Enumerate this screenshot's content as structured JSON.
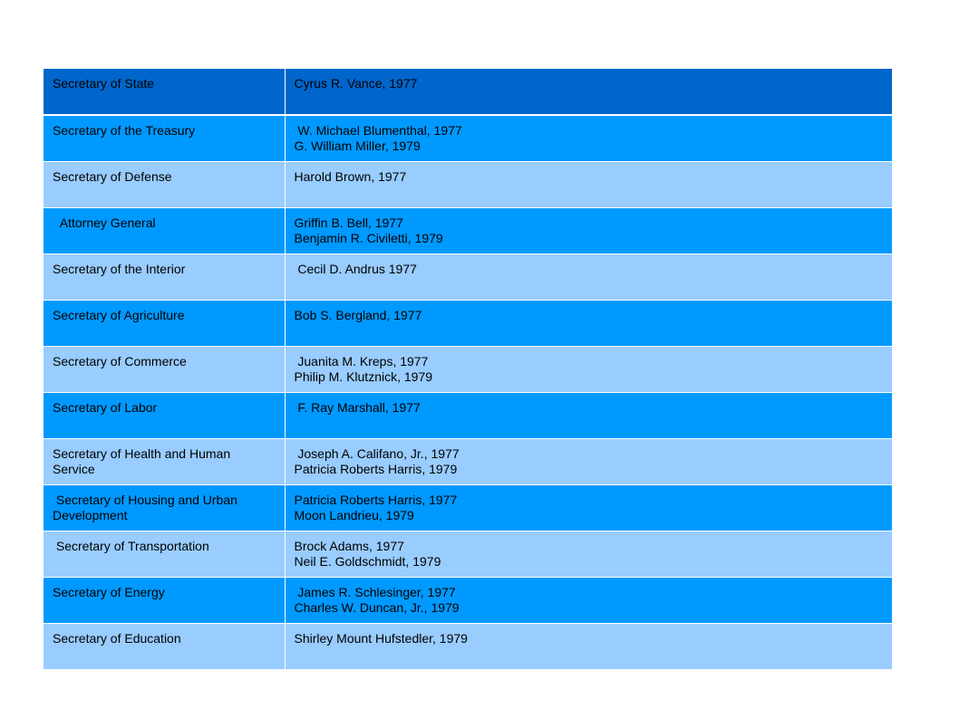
{
  "rows": [
    {
      "office": "Secretary of State",
      "holders": [
        "Cyrus R. Vance, 1977"
      ]
    },
    {
      "office": "Secretary of the Treasury",
      "holders": [
        " W. Michael Blumenthal, 1977",
        "G. William Miller, 1979"
      ]
    },
    {
      "office": "Secretary of Defense",
      "holders": [
        "Harold Brown, 1977"
      ]
    },
    {
      "office": "  Attorney General",
      "holders": [
        "Griffin B. Bell, 1977",
        "Benjamin R. Civiletti, 1979"
      ]
    },
    {
      "office": "Secretary of the Interior",
      "holders": [
        " Cecil D. Andrus 1977"
      ]
    },
    {
      "office": "Secretary of Agriculture",
      "holders": [
        "Bob S. Bergland, 1977"
      ]
    },
    {
      "office": "Secretary of Commerce",
      "holders": [
        " Juanita M. Kreps, 1977",
        "Philip M. Klutznick, 1979"
      ]
    },
    {
      "office": "Secretary of Labor",
      "holders": [
        " F. Ray Marshall, 1977"
      ]
    },
    {
      "office": "Secretary of Health and Human Service",
      "holders": [
        " Joseph A. Califano, Jr., 1977",
        "Patricia Roberts Harris, 1979"
      ]
    },
    {
      "office": " Secretary of Housing and Urban Development",
      "holders": [
        "Patricia Roberts Harris, 1977",
        "Moon Landrieu, 1979"
      ]
    },
    {
      "office": " Secretary of Transportation",
      "holders": [
        "Brock Adams, 1977",
        "Neil E. Goldschmidt, 1979"
      ]
    },
    {
      "office": "Secretary of Energy",
      "holders": [
        " James R. Schlesinger, 1977",
        "Charles W. Duncan, Jr., 1979"
      ]
    },
    {
      "office": "Secretary of Education",
      "holders": [
        "Shirley Mount Hufstedler, 1979"
      ]
    }
  ]
}
